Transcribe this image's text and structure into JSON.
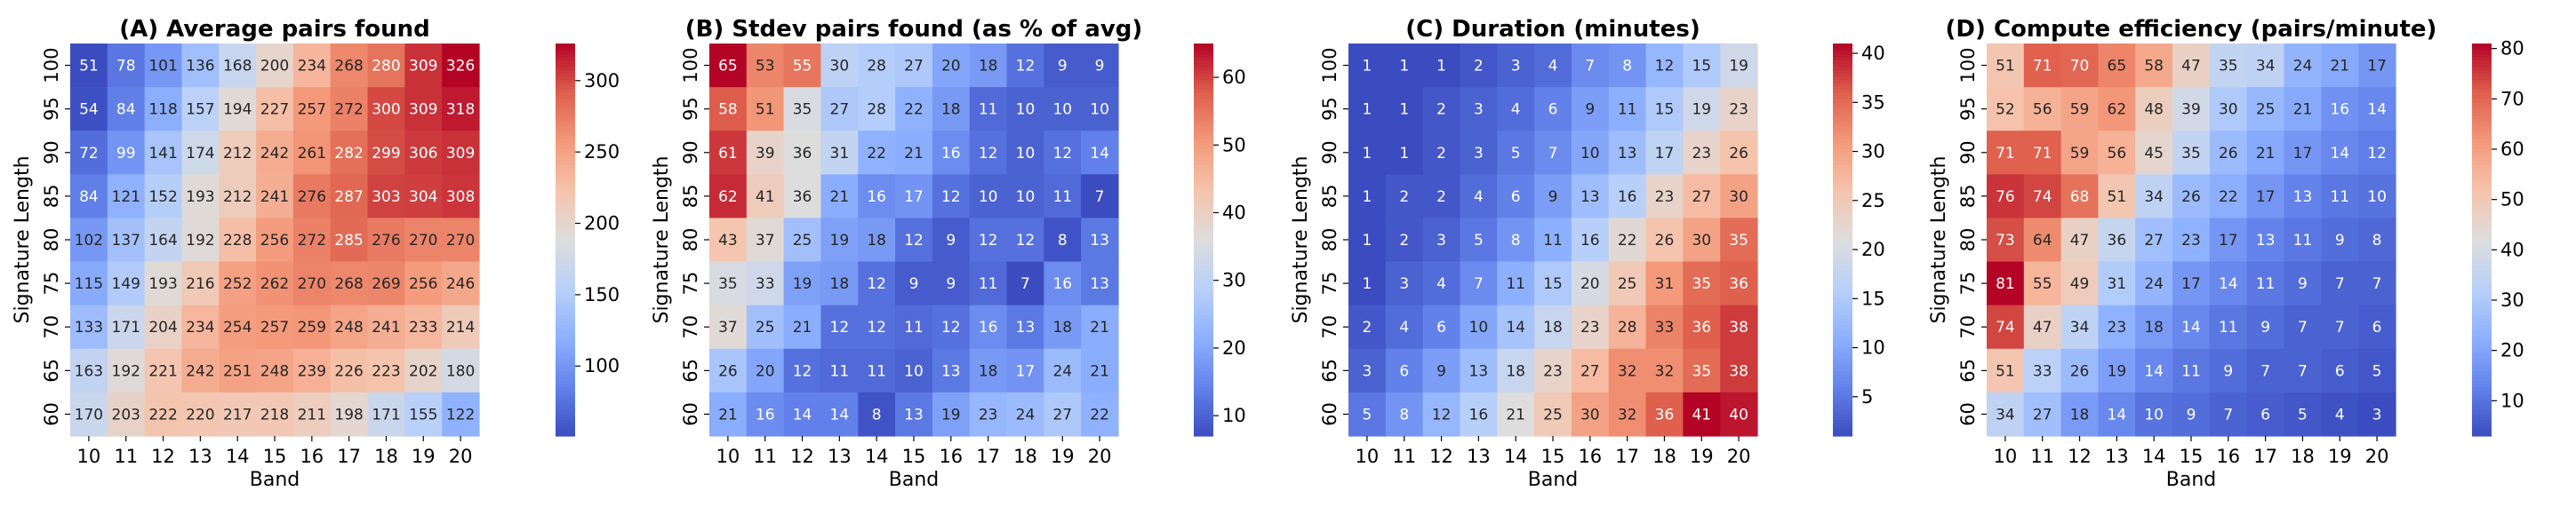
{
  "chart_data": [
    {
      "type": "heatmap",
      "title": "(A) Average pairs found",
      "xlabel": "Band",
      "ylabel": "Signature Length",
      "x_categories": [
        "10",
        "11",
        "12",
        "13",
        "14",
        "15",
        "16",
        "17",
        "18",
        "19",
        "20"
      ],
      "y_categories": [
        "100",
        "95",
        "90",
        "85",
        "80",
        "75",
        "70",
        "65",
        "60"
      ],
      "values": [
        [
          51,
          78,
          101,
          136,
          168,
          200,
          234,
          268,
          280,
          309,
          326
        ],
        [
          54,
          84,
          118,
          157,
          194,
          227,
          257,
          272,
          300,
          309,
          318
        ],
        [
          72,
          99,
          141,
          174,
          212,
          242,
          261,
          282,
          299,
          306,
          309
        ],
        [
          84,
          121,
          152,
          193,
          212,
          241,
          276,
          287,
          303,
          304,
          308
        ],
        [
          102,
          137,
          164,
          192,
          228,
          256,
          272,
          285,
          276,
          270,
          270
        ],
        [
          115,
          149,
          193,
          216,
          252,
          262,
          270,
          268,
          269,
          256,
          246
        ],
        [
          133,
          171,
          204,
          234,
          254,
          257,
          259,
          248,
          241,
          233,
          214
        ],
        [
          163,
          192,
          221,
          242,
          251,
          248,
          239,
          226,
          223,
          202,
          180
        ],
        [
          170,
          203,
          222,
          220,
          217,
          218,
          211,
          198,
          171,
          155,
          122
        ]
      ],
      "vmin": 51,
      "vmax": 326,
      "colorbar_ticks": [
        "100",
        "150",
        "200",
        "250",
        "300"
      ],
      "colorbar_tick_values": [
        100,
        150,
        200,
        250,
        300
      ],
      "colormap": "coolwarm"
    },
    {
      "type": "heatmap",
      "title": "(B) Stdev pairs found (as % of avg)",
      "xlabel": "Band",
      "ylabel": "Signature Length",
      "x_categories": [
        "10",
        "11",
        "12",
        "13",
        "14",
        "15",
        "16",
        "17",
        "18",
        "19",
        "20"
      ],
      "y_categories": [
        "100",
        "95",
        "90",
        "85",
        "80",
        "75",
        "70",
        "65",
        "60"
      ],
      "values": [
        [
          65,
          53,
          55,
          30,
          28,
          27,
          20,
          18,
          12,
          9,
          9
        ],
        [
          58,
          51,
          35,
          27,
          28,
          22,
          18,
          11,
          10,
          10,
          10
        ],
        [
          61,
          39,
          36,
          31,
          22,
          21,
          16,
          12,
          10,
          12,
          14
        ],
        [
          62,
          41,
          36,
          21,
          16,
          17,
          12,
          10,
          10,
          11,
          7
        ],
        [
          43,
          37,
          25,
          19,
          18,
          12,
          9,
          12,
          12,
          8,
          13
        ],
        [
          35,
          33,
          19,
          18,
          12,
          9,
          9,
          11,
          7,
          16,
          13
        ],
        [
          37,
          25,
          21,
          12,
          12,
          11,
          12,
          16,
          13,
          18,
          21
        ],
        [
          26,
          20,
          12,
          11,
          11,
          10,
          13,
          18,
          17,
          24,
          21
        ],
        [
          21,
          16,
          14,
          14,
          8,
          13,
          19,
          23,
          24,
          27,
          22
        ]
      ],
      "vmin": 7,
      "vmax": 65,
      "colorbar_ticks": [
        "10",
        "20",
        "30",
        "40",
        "50",
        "60"
      ],
      "colorbar_tick_values": [
        10,
        20,
        30,
        40,
        50,
        60
      ],
      "colormap": "coolwarm"
    },
    {
      "type": "heatmap",
      "title": "(C) Duration (minutes)",
      "xlabel": "Band",
      "ylabel": "Signature Length",
      "x_categories": [
        "10",
        "11",
        "12",
        "13",
        "14",
        "15",
        "16",
        "17",
        "18",
        "19",
        "20"
      ],
      "y_categories": [
        "100",
        "95",
        "90",
        "85",
        "80",
        "75",
        "70",
        "65",
        "60"
      ],
      "values": [
        [
          1,
          1,
          1,
          2,
          3,
          4,
          7,
          8,
          12,
          15,
          19
        ],
        [
          1,
          1,
          2,
          3,
          4,
          6,
          9,
          11,
          15,
          19,
          23
        ],
        [
          1,
          1,
          2,
          3,
          5,
          7,
          10,
          13,
          17,
          23,
          26
        ],
        [
          1,
          2,
          2,
          4,
          6,
          9,
          13,
          16,
          23,
          27,
          30
        ],
        [
          1,
          2,
          3,
          5,
          8,
          11,
          16,
          22,
          26,
          30,
          35
        ],
        [
          1,
          3,
          4,
          7,
          11,
          15,
          20,
          25,
          31,
          35,
          36
        ],
        [
          2,
          4,
          6,
          10,
          14,
          18,
          23,
          28,
          33,
          36,
          38
        ],
        [
          3,
          6,
          9,
          13,
          18,
          23,
          27,
          32,
          32,
          35,
          38
        ],
        [
          5,
          8,
          12,
          16,
          21,
          25,
          30,
          32,
          36,
          41,
          40
        ]
      ],
      "vmin": 1,
      "vmax": 41,
      "colorbar_ticks": [
        "5",
        "10",
        "15",
        "20",
        "25",
        "30",
        "35",
        "40"
      ],
      "colorbar_tick_values": [
        5,
        10,
        15,
        20,
        25,
        30,
        35,
        40
      ],
      "colormap": "coolwarm"
    },
    {
      "type": "heatmap",
      "title": "(D) Compute efficiency (pairs/minute)",
      "xlabel": "Band",
      "ylabel": "Signature Length",
      "x_categories": [
        "10",
        "11",
        "12",
        "13",
        "14",
        "15",
        "16",
        "17",
        "18",
        "19",
        "20"
      ],
      "y_categories": [
        "100",
        "95",
        "90",
        "85",
        "80",
        "75",
        "70",
        "65",
        "60"
      ],
      "values": [
        [
          51,
          71,
          70,
          65,
          58,
          47,
          35,
          34,
          24,
          21,
          17
        ],
        [
          52,
          56,
          59,
          62,
          48,
          39,
          30,
          25,
          21,
          16,
          14
        ],
        [
          71,
          71,
          59,
          56,
          45,
          35,
          26,
          21,
          17,
          14,
          12
        ],
        [
          76,
          74,
          68,
          51,
          34,
          26,
          22,
          17,
          13,
          11,
          10
        ],
        [
          73,
          64,
          47,
          36,
          27,
          23,
          17,
          13,
          11,
          9,
          8
        ],
        [
          81,
          55,
          49,
          31,
          24,
          17,
          14,
          11,
          9,
          7,
          7
        ],
        [
          74,
          47,
          34,
          23,
          18,
          14,
          11,
          9,
          7,
          7,
          6
        ],
        [
          51,
          33,
          26,
          19,
          14,
          11,
          9,
          7,
          7,
          6,
          5
        ],
        [
          34,
          27,
          18,
          14,
          10,
          9,
          7,
          6,
          5,
          4,
          3
        ]
      ],
      "vmin": 3,
      "vmax": 81,
      "colorbar_ticks": [
        "10",
        "20",
        "30",
        "40",
        "50",
        "60",
        "70",
        "80"
      ],
      "colorbar_tick_values": [
        10,
        20,
        30,
        40,
        50,
        60,
        70,
        80
      ],
      "colormap": "coolwarm"
    }
  ]
}
